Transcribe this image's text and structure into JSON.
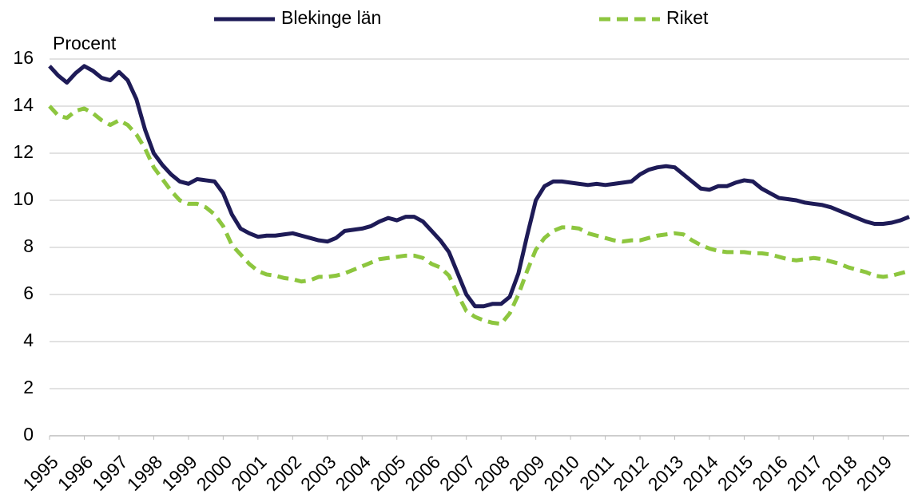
{
  "chart_data": {
    "type": "line",
    "axis_label": "Procent",
    "legend": "top",
    "grid": true,
    "xlim": [
      1995,
      2019.75
    ],
    "xticks": [
      1995,
      1996,
      1997,
      1998,
      1999,
      2000,
      2001,
      2002,
      2003,
      2004,
      2005,
      2006,
      2007,
      2008,
      2009,
      2010,
      2011,
      2012,
      2013,
      2014,
      2015,
      2016,
      2017,
      2018,
      2019
    ],
    "ylim": [
      0,
      16
    ],
    "yticks": [
      0,
      2,
      4,
      6,
      8,
      10,
      12,
      14,
      16
    ],
    "x": [
      1995,
      1995.25,
      1995.5,
      1995.75,
      1996,
      1996.25,
      1996.5,
      1996.75,
      1997,
      1997.25,
      1997.5,
      1997.75,
      1998,
      1998.25,
      1998.5,
      1998.75,
      1999,
      1999.25,
      1999.5,
      1999.75,
      2000,
      2000.25,
      2000.5,
      2000.75,
      2001,
      2001.25,
      2001.5,
      2001.75,
      2002,
      2002.25,
      2002.5,
      2002.75,
      2003,
      2003.25,
      2003.5,
      2003.75,
      2004,
      2004.25,
      2004.5,
      2004.75,
      2005,
      2005.25,
      2005.5,
      2005.75,
      2006,
      2006.25,
      2006.5,
      2006.75,
      2007,
      2007.25,
      2007.5,
      2007.75,
      2008,
      2008.25,
      2008.5,
      2008.75,
      2009,
      2009.25,
      2009.5,
      2009.75,
      2010,
      2010.25,
      2010.5,
      2010.75,
      2011,
      2011.25,
      2011.5,
      2011.75,
      2012,
      2012.25,
      2012.5,
      2012.75,
      2013,
      2013.25,
      2013.5,
      2013.75,
      2014,
      2014.25,
      2014.5,
      2014.75,
      2015,
      2015.25,
      2015.5,
      2015.75,
      2016,
      2016.25,
      2016.5,
      2016.75,
      2017,
      2017.25,
      2017.5,
      2017.75,
      2018,
      2018.25,
      2018.5,
      2018.75,
      2019,
      2019.25,
      2019.5,
      2019.75
    ],
    "series": [
      {
        "name": "Blekinge län",
        "color": "#1e1b57",
        "style": "solid",
        "values": [
          15.7,
          15.3,
          15.0,
          15.4,
          15.7,
          15.5,
          15.2,
          15.1,
          15.45,
          15.1,
          14.3,
          13.0,
          12.0,
          11.5,
          11.1,
          10.8,
          10.7,
          10.9,
          10.85,
          10.8,
          10.3,
          9.4,
          8.8,
          8.6,
          8.45,
          8.5,
          8.5,
          8.55,
          8.6,
          8.5,
          8.4,
          8.3,
          8.25,
          8.4,
          8.7,
          8.75,
          8.8,
          8.9,
          9.1,
          9.25,
          9.15,
          9.3,
          9.3,
          9.1,
          8.7,
          8.3,
          7.8,
          6.9,
          6.0,
          5.5,
          5.5,
          5.6,
          5.6,
          5.9,
          6.9,
          8.5,
          10.0,
          10.6,
          10.8,
          10.8,
          10.75,
          10.7,
          10.65,
          10.7,
          10.65,
          10.7,
          10.75,
          10.8,
          11.1,
          11.3,
          11.4,
          11.45,
          11.4,
          11.1,
          10.8,
          10.5,
          10.45,
          10.6,
          10.6,
          10.75,
          10.85,
          10.8,
          10.5,
          10.3,
          10.1,
          10.05,
          10.0,
          9.9,
          9.85,
          9.8,
          9.7,
          9.55,
          9.4,
          9.25,
          9.1,
          9.0,
          9.0,
          9.05,
          9.15,
          9.3
        ]
      },
      {
        "name": "Riket",
        "color": "#8dc63f",
        "style": "dashed",
        "values": [
          14.0,
          13.6,
          13.5,
          13.8,
          13.9,
          13.7,
          13.4,
          13.2,
          13.4,
          13.2,
          12.8,
          12.2,
          11.4,
          10.9,
          10.4,
          10.0,
          9.85,
          9.85,
          9.7,
          9.4,
          8.9,
          8.1,
          7.7,
          7.3,
          7.0,
          6.85,
          6.8,
          6.7,
          6.65,
          6.55,
          6.6,
          6.75,
          6.75,
          6.8,
          6.9,
          7.05,
          7.2,
          7.35,
          7.5,
          7.55,
          7.6,
          7.65,
          7.65,
          7.55,
          7.3,
          7.15,
          6.8,
          6.0,
          5.3,
          5.05,
          4.9,
          4.8,
          4.75,
          5.2,
          6.0,
          7.0,
          7.9,
          8.4,
          8.7,
          8.85,
          8.85,
          8.8,
          8.6,
          8.5,
          8.4,
          8.3,
          8.25,
          8.3,
          8.3,
          8.4,
          8.5,
          8.55,
          8.6,
          8.55,
          8.3,
          8.1,
          7.95,
          7.85,
          7.8,
          7.8,
          7.8,
          7.75,
          7.75,
          7.7,
          7.6,
          7.5,
          7.45,
          7.5,
          7.55,
          7.5,
          7.4,
          7.3,
          7.15,
          7.05,
          6.95,
          6.8,
          6.75,
          6.8,
          6.9,
          7.0
        ]
      }
    ]
  }
}
